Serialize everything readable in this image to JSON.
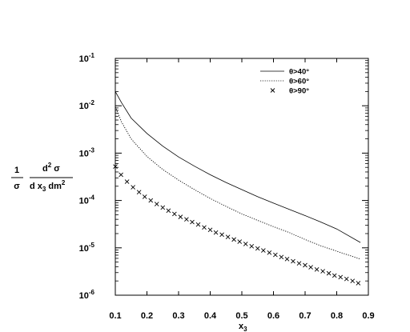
{
  "chart_data": {
    "type": "line",
    "xlabel": {
      "base": "x",
      "sub": "3"
    },
    "ylabel": {
      "num_left": "1",
      "den_left": "σ",
      "num_right": "d",
      "num_right_sup": "2",
      "num_right_tail": " σ",
      "den_right_a": "d x",
      "den_right_sub": "3",
      "den_right_b": " dm",
      "den_right_sup": "2"
    },
    "xlim": [
      0.1,
      0.9
    ],
    "ylim": [
      1e-06,
      0.1
    ],
    "yscale": "log",
    "x_ticks": [
      "0.1",
      "0.2",
      "0.3",
      "0.4",
      "0.5",
      "0.6",
      "0.7",
      "0.8",
      "0.9"
    ],
    "y_ticks": [
      {
        "base": "10",
        "exp": "-1"
      },
      {
        "base": "10",
        "exp": "-2"
      },
      {
        "base": "10",
        "exp": "-3"
      },
      {
        "base": "10",
        "exp": "-4"
      },
      {
        "base": "10",
        "exp": "-5"
      },
      {
        "base": "10",
        "exp": "-6"
      }
    ],
    "legend_position": "top-right",
    "grid": false,
    "series": [
      {
        "name": "θ>40°",
        "style": "solid",
        "x": [
          0.1,
          0.12,
          0.15,
          0.2,
          0.25,
          0.3,
          0.35,
          0.4,
          0.45,
          0.5,
          0.55,
          0.6,
          0.65,
          0.7,
          0.75,
          0.8,
          0.875
        ],
        "values": [
          0.02,
          0.0115,
          0.0055,
          0.0026,
          0.0014,
          0.00083,
          0.00053,
          0.00035,
          0.00024,
          0.00017,
          0.00012,
          8.8e-05,
          6.5e-05,
          4.8e-05,
          3.5e-05,
          2.5e-05,
          1.3e-05
        ]
      },
      {
        "name": "θ>60°",
        "style": "dotted",
        "x": [
          0.1,
          0.12,
          0.15,
          0.2,
          0.25,
          0.3,
          0.35,
          0.4,
          0.45,
          0.5,
          0.55,
          0.6,
          0.65,
          0.7,
          0.75,
          0.8,
          0.875
        ],
        "values": [
          0.0095,
          0.0045,
          0.002,
          0.00085,
          0.00045,
          0.00027,
          0.00017,
          0.00011,
          7.5e-05,
          5.2e-05,
          3.8e-05,
          2.8e-05,
          2.1e-05,
          1.5e-05,
          1.1e-05,
          8.5e-06,
          5.8e-06
        ]
      },
      {
        "name": "θ>90°",
        "style": "markers",
        "x": [
          0.1,
          0.118,
          0.137,
          0.156,
          0.175,
          0.193,
          0.212,
          0.231,
          0.25,
          0.268,
          0.287,
          0.306,
          0.325,
          0.343,
          0.362,
          0.381,
          0.4,
          0.418,
          0.437,
          0.456,
          0.475,
          0.493,
          0.512,
          0.531,
          0.55,
          0.568,
          0.587,
          0.606,
          0.625,
          0.643,
          0.662,
          0.681,
          0.7,
          0.718,
          0.737,
          0.756,
          0.775,
          0.793,
          0.812,
          0.831,
          0.85,
          0.868
        ],
        "values": [
          0.00052,
          0.00035,
          0.00025,
          0.00019,
          0.00015,
          0.00012,
          0.0001,
          8.4e-05,
          7.1e-05,
          6.1e-05,
          5.2e-05,
          4.5e-05,
          4e-05,
          3.5e-05,
          3.1e-05,
          2.7e-05,
          2.4e-05,
          2.1e-05,
          1.9e-05,
          1.7e-05,
          1.5e-05,
          1.35e-05,
          1.21e-05,
          1.08e-05,
          9.7e-06,
          8.8e-06,
          7.9e-06,
          7.1e-06,
          6.4e-06,
          5.8e-06,
          5.2e-06,
          4.7e-06,
          4.3e-06,
          3.9e-06,
          3.5e-06,
          3.2e-06,
          2.9e-06,
          2.6e-06,
          2.4e-06,
          2.2e-06,
          2e-06,
          1.8e-06
        ]
      }
    ]
  }
}
